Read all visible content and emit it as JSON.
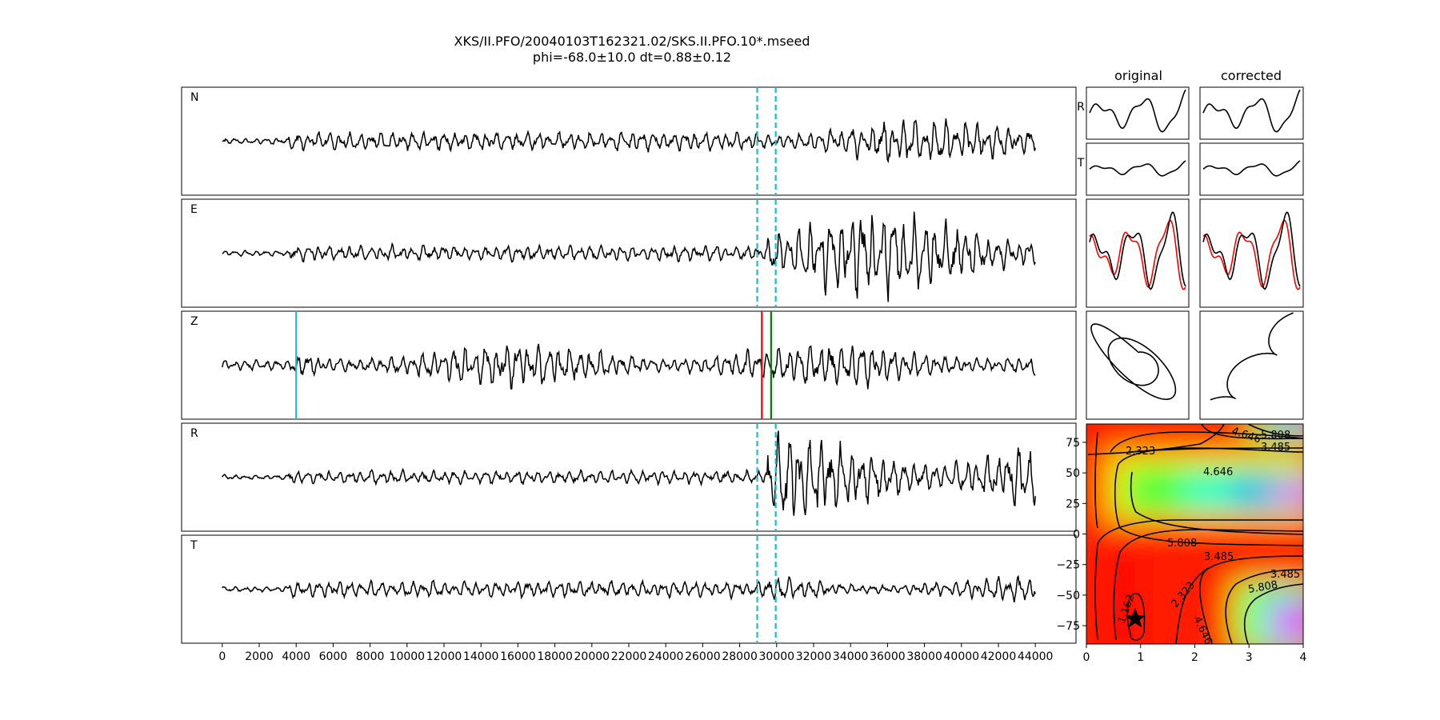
{
  "figure": {
    "title": "XKS/II.PFO/20040103T162321.02/SKS.II.PFO.10*.mseed",
    "subtitle": "phi=-68.0±10.0 dt=0.88±0.12",
    "col_original": "original",
    "col_corrected": "corrected"
  },
  "chart_data": [
    {
      "type": "line",
      "kind": "seismograms",
      "traces": [
        {
          "label": "N",
          "amp": 0.18,
          "onset": 29500,
          "post_amp": 0.45
        },
        {
          "label": "E",
          "amp": 0.15,
          "onset": 29500,
          "post_amp": 0.85
        },
        {
          "label": "Z",
          "amp": 0.2,
          "onset": 4000,
          "post_amp": 0.45
        },
        {
          "label": "R",
          "amp": 0.13,
          "onset": 29500,
          "post_amp": 0.9
        },
        {
          "label": "T",
          "amp": 0.16,
          "onset": 29500,
          "post_amp": 0.28
        }
      ],
      "xlim": [
        -2200,
        46200
      ],
      "xticks": [
        0,
        2000,
        4000,
        6000,
        8000,
        10000,
        12000,
        14000,
        16000,
        18000,
        20000,
        22000,
        24000,
        26000,
        28000,
        30000,
        32000,
        34000,
        36000,
        38000,
        40000,
        42000,
        44000
      ],
      "data_range": [
        0,
        44000
      ],
      "window_lines": {
        "x": [
          28950,
          29950
        ],
        "color": "#17becf",
        "style": "dashed",
        "panels": [
          "N",
          "E",
          "R",
          "T"
        ]
      },
      "pick_lines": [
        {
          "x": 4000,
          "color": "#17becf",
          "panel": "Z"
        },
        {
          "x": 29200,
          "color": "#ff0000",
          "panel": "Z"
        },
        {
          "x": 29700,
          "color": "#008000",
          "panel": "Z"
        }
      ]
    },
    {
      "type": "line",
      "kind": "component_windows",
      "row_labels": [
        "R",
        "T"
      ],
      "columns": [
        "original",
        "corrected"
      ]
    },
    {
      "type": "heatmap",
      "kind": "misfit_surface",
      "xlim": [
        0,
        4
      ],
      "ylim": [
        -90,
        90
      ],
      "xticks": [
        0,
        1,
        2,
        3,
        4
      ],
      "yticks": [
        75,
        50,
        25,
        0,
        -25,
        -50,
        -75
      ],
      "colormap": "gist_rainbow",
      "min": {
        "dt": 0.88,
        "phi": -68.0
      },
      "contour_levels": [
        1.162,
        2.323,
        3.485,
        4.646,
        5.808
      ],
      "contour_labels": [
        "4.646",
        "5.808",
        "3.485",
        "2.323",
        "4.646",
        "5.808",
        "3.485",
        "3.485",
        "5.808",
        "2.323",
        "1.162",
        "4.646"
      ]
    }
  ]
}
